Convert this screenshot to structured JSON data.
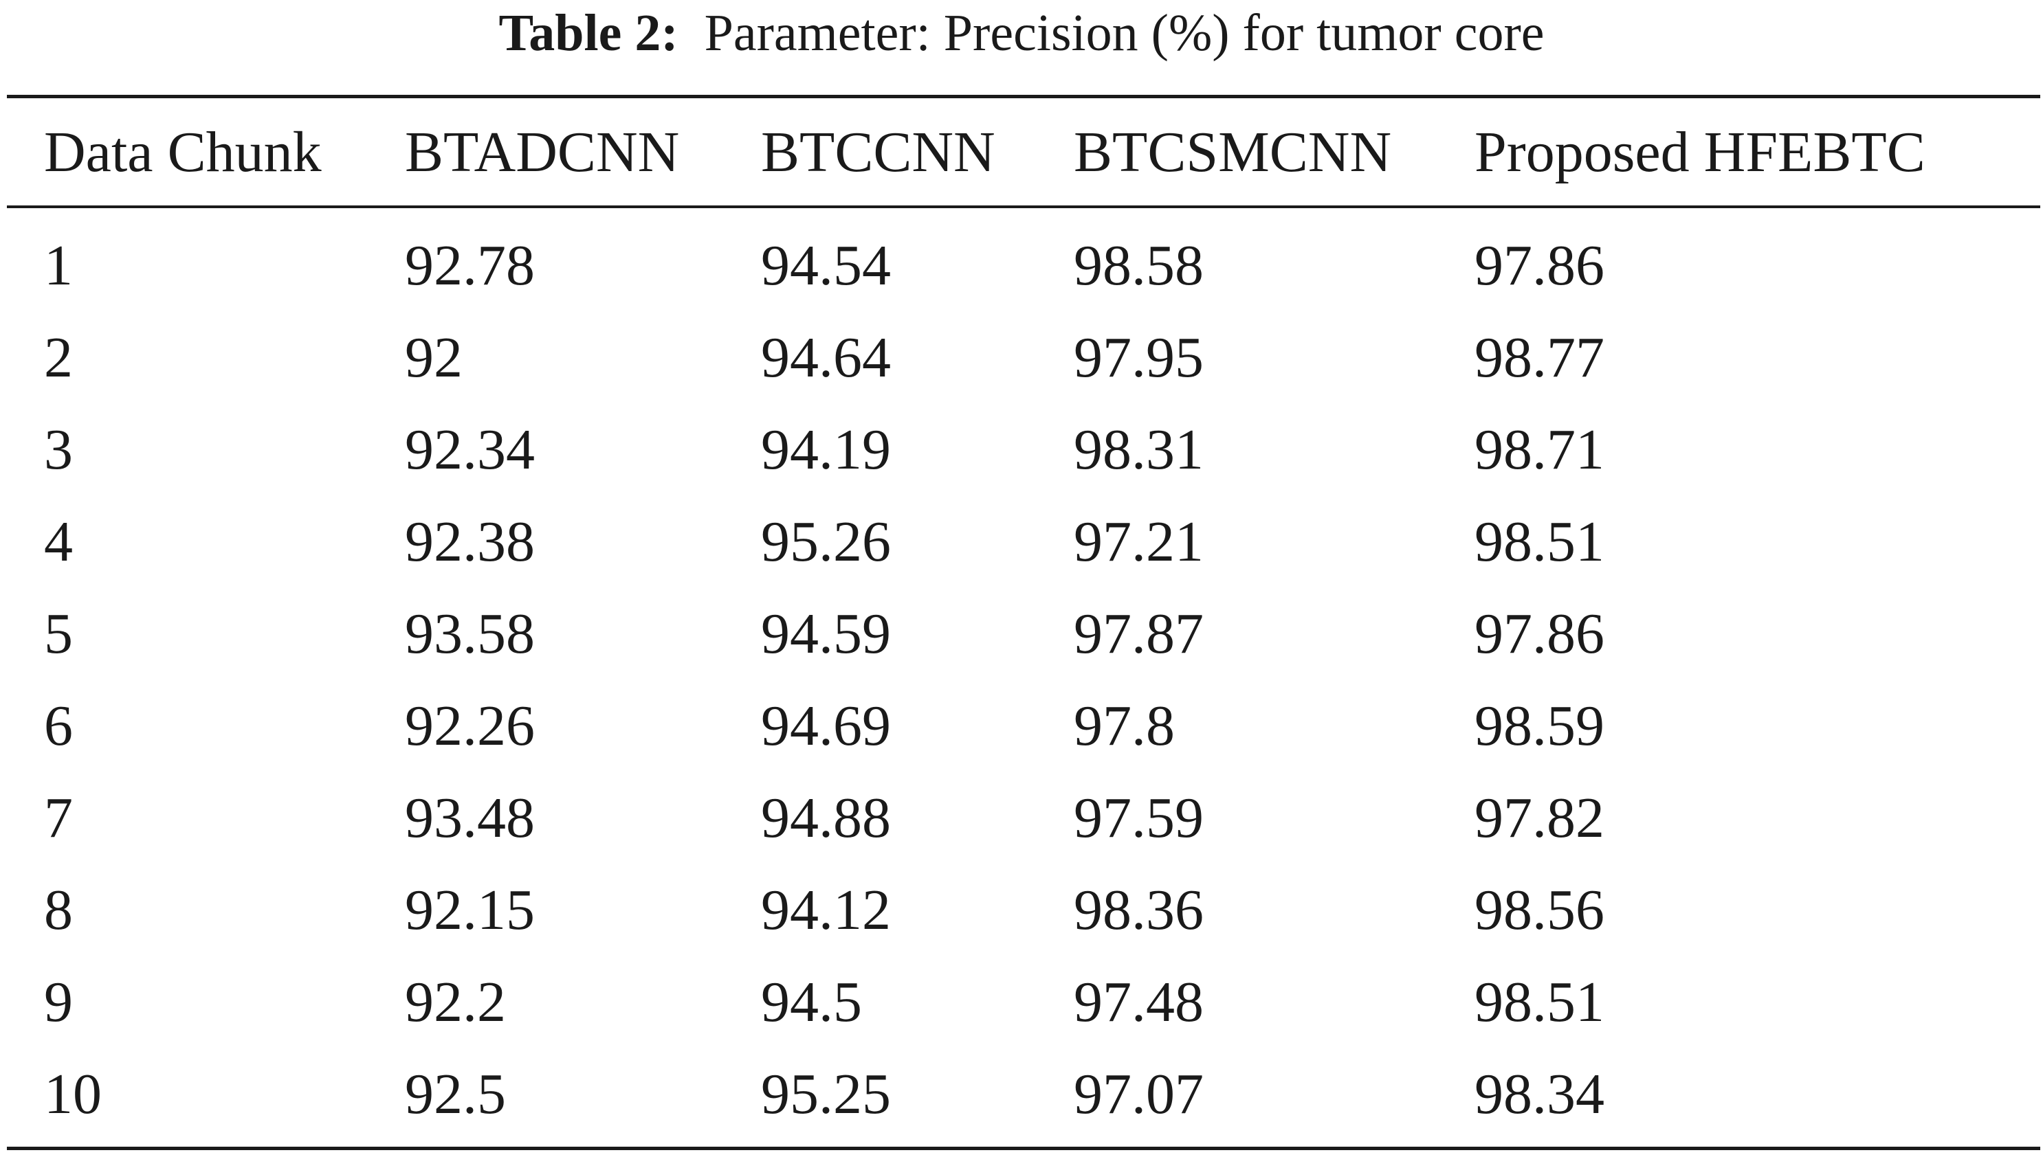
{
  "caption": {
    "label": "Table 2:",
    "text": "Parameter: Precision (%) for tumor core"
  },
  "table": {
    "columns": [
      "Data Chunk",
      "BTADCNN",
      "BTCCNN",
      "BTCSMCNN",
      "Proposed HFEBTC"
    ],
    "rows": [
      [
        "1",
        "92.78",
        "94.54",
        "98.58",
        "97.86"
      ],
      [
        "2",
        "92",
        "94.64",
        "97.95",
        "98.77"
      ],
      [
        "3",
        "92.34",
        "94.19",
        "98.31",
        "98.71"
      ],
      [
        "4",
        "92.38",
        "95.26",
        "97.21",
        "98.51"
      ],
      [
        "5",
        "93.58",
        "94.59",
        "97.87",
        "97.86"
      ],
      [
        "6",
        "92.26",
        "94.69",
        "97.8",
        "98.59"
      ],
      [
        "7",
        "93.48",
        "94.88",
        "97.59",
        "97.82"
      ],
      [
        "8",
        "92.15",
        "94.12",
        "98.36",
        "98.56"
      ],
      [
        "9",
        "92.2",
        "94.5",
        "97.48",
        "98.51"
      ],
      [
        "10",
        "92.5",
        "95.25",
        "97.07",
        "98.34"
      ]
    ]
  }
}
